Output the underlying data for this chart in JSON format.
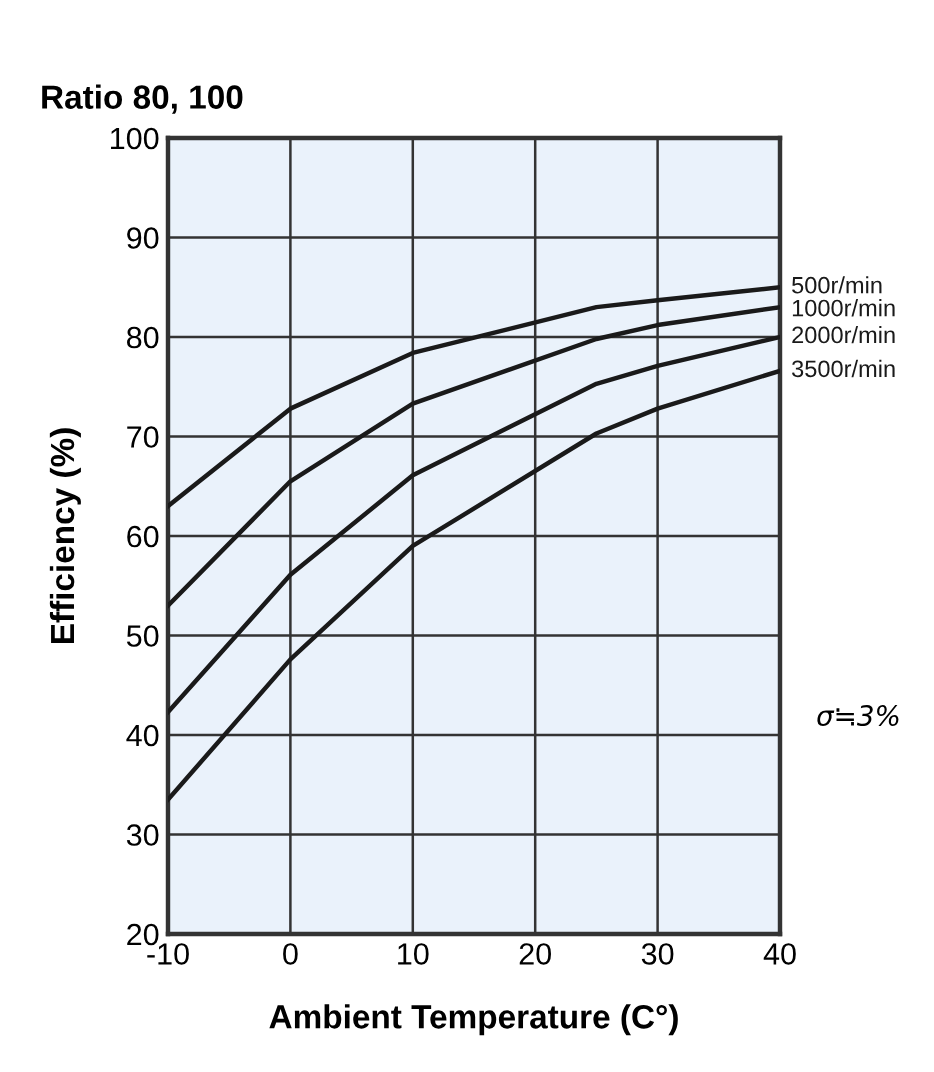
{
  "chart_data": {
    "type": "line",
    "title": "Ratio 80, 100",
    "xlabel": "Ambient Temperature (C°)",
    "ylabel": "Efficiency (%)",
    "x": [
      -10,
      0,
      10,
      25,
      30,
      40
    ],
    "series": [
      {
        "name": "500r/min",
        "color": "#1a1a1a",
        "values": [
          63,
          72.8,
          78.4,
          83,
          83.7,
          85
        ]
      },
      {
        "name": "1000r/min",
        "color": "#1a1a1a",
        "values": [
          53,
          65.5,
          73.3,
          79.8,
          81.2,
          83
        ]
      },
      {
        "name": "2000r/min",
        "color": "#1a1a1a",
        "values": [
          42.3,
          56.1,
          66.1,
          75.3,
          77.1,
          80
        ]
      },
      {
        "name": "3500r/min",
        "color": "#1a1a1a",
        "values": [
          33.5,
          47.6,
          59,
          70.3,
          72.8,
          76.6
        ]
      }
    ],
    "annotations": [
      "σ≒3%"
    ],
    "xlim": [
      -10,
      40
    ],
    "ylim": [
      20,
      100
    ],
    "xticks": [
      -10,
      0,
      10,
      20,
      30,
      40
    ],
    "yticks": [
      20,
      30,
      40,
      50,
      60,
      70,
      80,
      90,
      100
    ],
    "grid": true,
    "legend": false,
    "marker": "none",
    "line_style": "solid"
  }
}
